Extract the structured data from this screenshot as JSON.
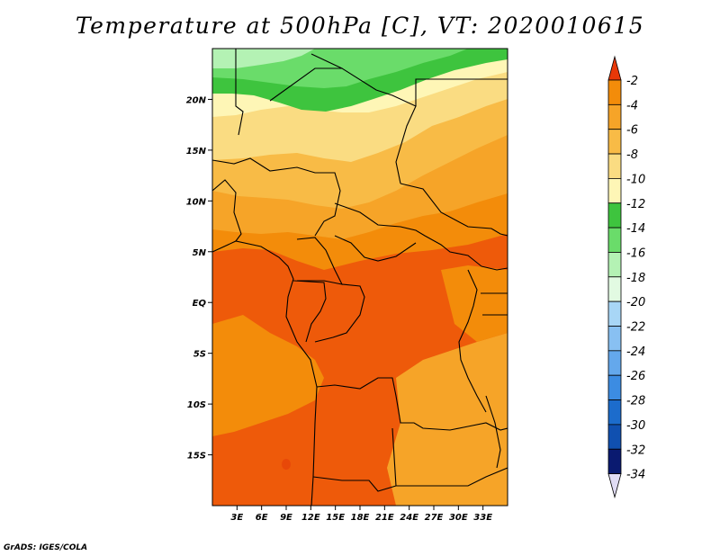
{
  "title": "Temperature at 500hPa [C], VT: 2020010615",
  "credit": "GrADS: IGES/COLA",
  "map": {
    "lon_range": [
      0,
      36
    ],
    "lat_range": [
      -20,
      25
    ],
    "x_ticks": [
      {
        "lon": 3,
        "label": "3E"
      },
      {
        "lon": 6,
        "label": "6E"
      },
      {
        "lon": 9,
        "label": "9E"
      },
      {
        "lon": 12,
        "label": "12E"
      },
      {
        "lon": 15,
        "label": "15E"
      },
      {
        "lon": 18,
        "label": "18E"
      },
      {
        "lon": 21,
        "label": "21E"
      },
      {
        "lon": 24,
        "label": "24E"
      },
      {
        "lon": 27,
        "label": "27E"
      },
      {
        "lon": 30,
        "label": "30E"
      },
      {
        "lon": 33,
        "label": "33E"
      }
    ],
    "y_ticks": [
      {
        "lat": 20,
        "label": "20N"
      },
      {
        "lat": 15,
        "label": "15N"
      },
      {
        "lat": 10,
        "label": "10N"
      },
      {
        "lat": 5,
        "label": "5N"
      },
      {
        "lat": 0,
        "label": "EQ"
      },
      {
        "lat": -5,
        "label": "5S"
      },
      {
        "lat": -10,
        "label": "10S"
      },
      {
        "lat": -15,
        "label": "15S"
      }
    ]
  },
  "colorbar": {
    "levels": [
      {
        "label": "-2",
        "color": "#ee5a0a"
      },
      {
        "label": "-4",
        "color": "#f38c0a"
      },
      {
        "label": "-6",
        "color": "#f6a428"
      },
      {
        "label": "-8",
        "color": "#f8bb46"
      },
      {
        "label": "-10",
        "color": "#fadc82"
      },
      {
        "label": "-12",
        "color": "#fef6b6"
      },
      {
        "label": "-14",
        "color": "#3ec43e"
      },
      {
        "label": "-16",
        "color": "#6adc6a"
      },
      {
        "label": "-18",
        "color": "#b4f2b4"
      },
      {
        "label": "-20",
        "color": "#e2fae2"
      },
      {
        "label": "-22",
        "color": "#a8d6f6"
      },
      {
        "label": "-24",
        "color": "#88c0f2"
      },
      {
        "label": "-26",
        "color": "#64a8ec"
      },
      {
        "label": "-28",
        "color": "#3c8ce2"
      },
      {
        "label": "-30",
        "color": "#1c6ccc"
      },
      {
        "label": "-32",
        "color": "#1050b0"
      },
      {
        "label": "-34",
        "color": "#0a1a70"
      }
    ],
    "top_arrow_color": "#e83808",
    "bottom_arrow_color": "#e0dcf4"
  }
}
